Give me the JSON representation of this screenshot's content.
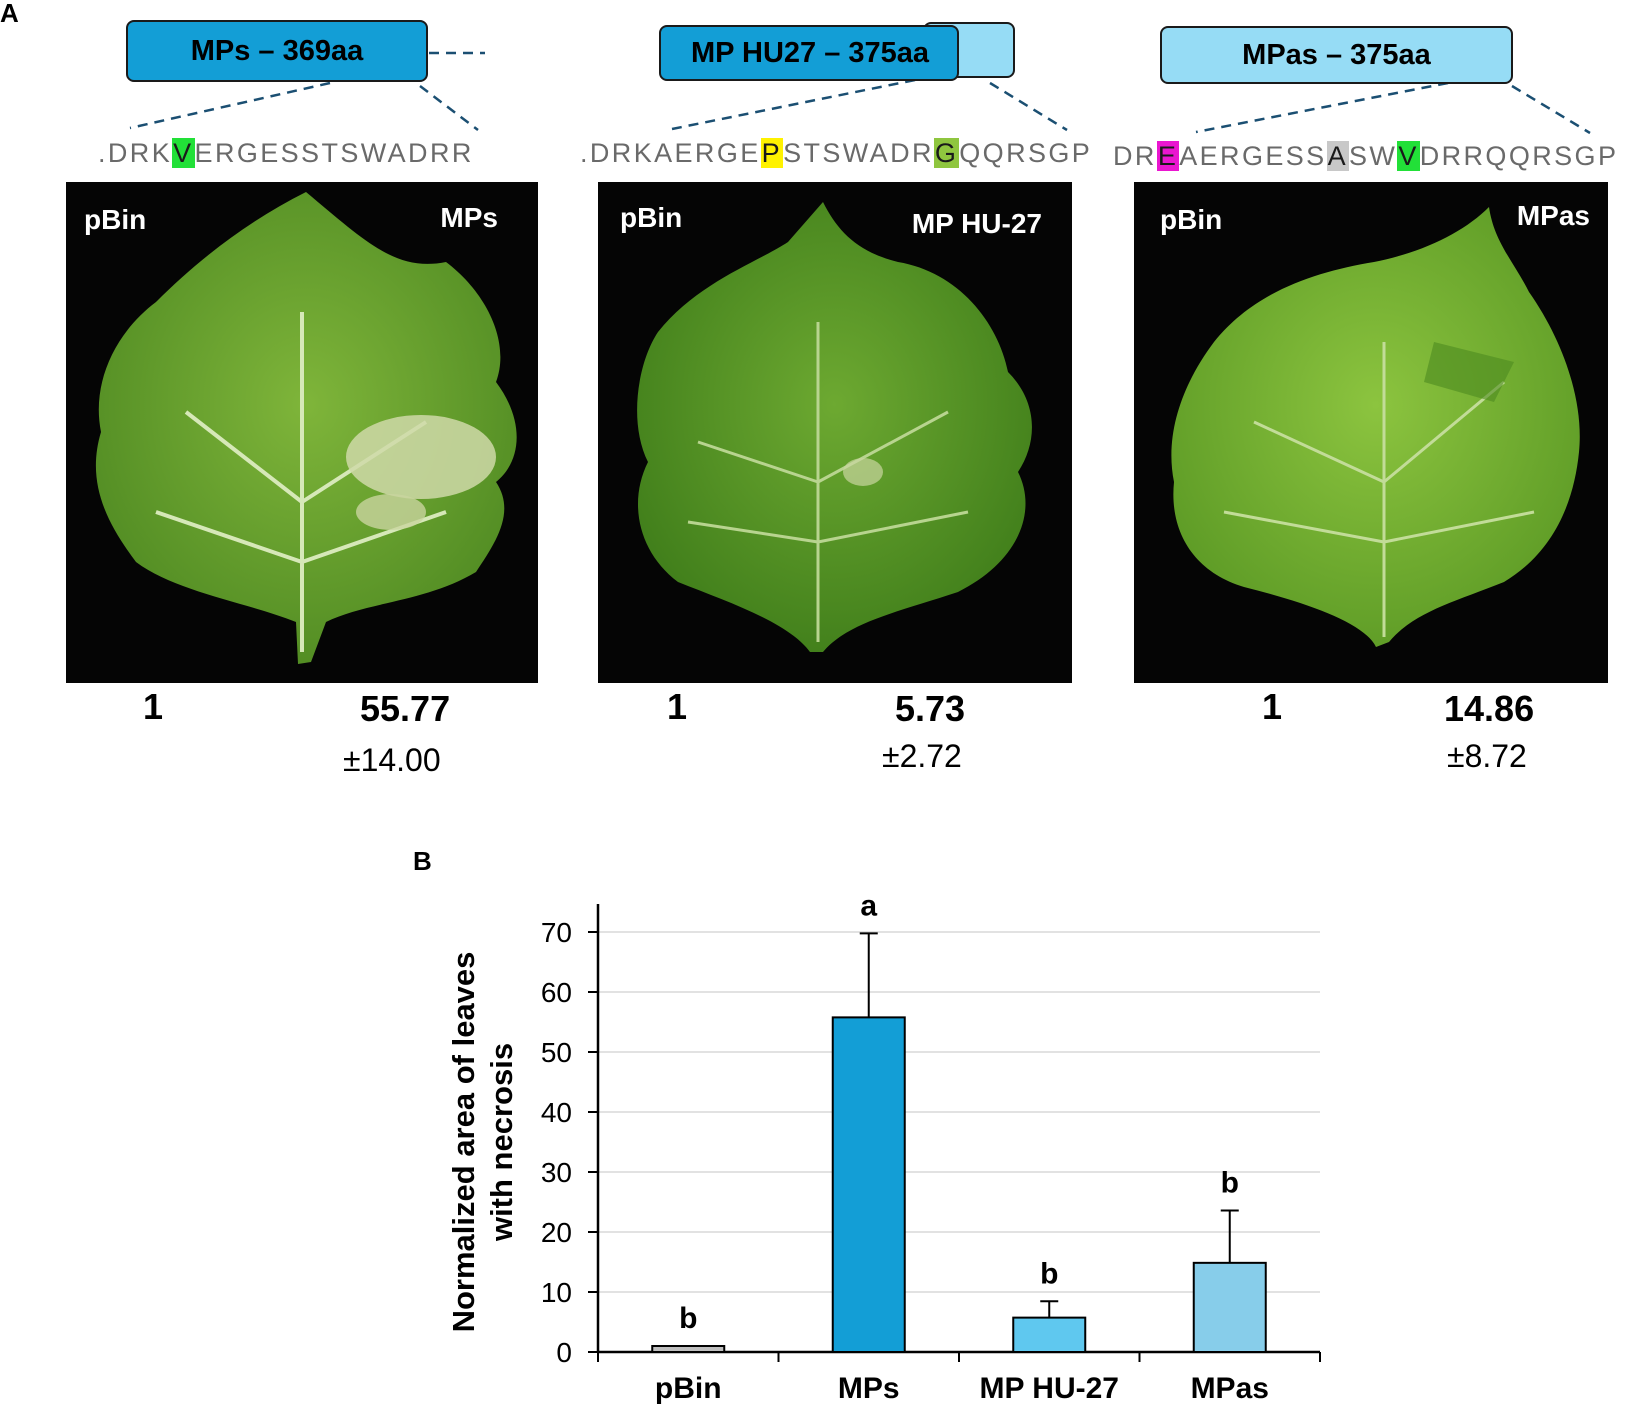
{
  "panel_a": {
    "letter": "A",
    "constructs": [
      {
        "box_label": "MPs – 369aa",
        "seq_segments": [
          {
            "t": ".DRK",
            "hl": ""
          },
          {
            "t": "V",
            "hl": "#22e038"
          },
          {
            "t": "ERGESSTSWADRR",
            "hl": ""
          }
        ],
        "panel_left": "pBin",
        "panel_right": "MPs",
        "ratio_left": "1",
        "ratio_right": "55.77",
        "sd_right": "±14.00"
      },
      {
        "box_label": "MP HU27 – 375aa",
        "seq_segments": [
          {
            "t": ".DRKAERGE",
            "hl": ""
          },
          {
            "t": "P",
            "hl": "#fff200"
          },
          {
            "t": "STSWADR",
            "hl": ""
          },
          {
            "t": "G",
            "hl": "#8fc63f"
          },
          {
            "t": "QQRSGP",
            "hl": ""
          }
        ],
        "panel_left": "pBin",
        "panel_right": "MP HU-27",
        "ratio_left": "1",
        "ratio_right": "5.73",
        "sd_right": "±2.72"
      },
      {
        "box_label": "MPas – 375aa",
        "seq_segments": [
          {
            "t": "DR",
            "hl": ""
          },
          {
            "t": "E",
            "hl": "#ea16d0"
          },
          {
            "t": "AERGESS",
            "hl": ""
          },
          {
            "t": "A",
            "hl": "#c8c8c8"
          },
          {
            "t": "SW",
            "hl": ""
          },
          {
            "t": "V",
            "hl": "#22e038"
          },
          {
            "t": "DRRQQRSGP",
            "hl": ""
          }
        ],
        "panel_left": "pBin",
        "panel_right": "MPas",
        "ratio_left": "1",
        "ratio_right": "14.86",
        "sd_right": "±8.72"
      }
    ]
  },
  "panel_b": {
    "letter": "B",
    "chart_data": {
      "type": "bar",
      "categories": [
        "pBin",
        "MPs",
        "MP HU-27",
        "MPas"
      ],
      "values": [
        1,
        55.77,
        5.73,
        14.86
      ],
      "errors": [
        0,
        14.0,
        2.72,
        8.72
      ],
      "significance": [
        "b",
        "a",
        "b",
        "b"
      ],
      "bar_colors": [
        "#bfbfbf",
        "#139ed6",
        "#5fc8ef",
        "#87cdea"
      ],
      "ylabel_line1": "Normalized area of leaves",
      "ylabel_line2": "with necrosis",
      "ylim": [
        0,
        70
      ],
      "yticks": [
        0,
        10,
        20,
        30,
        40,
        50,
        60,
        70
      ],
      "grid": true
    }
  }
}
